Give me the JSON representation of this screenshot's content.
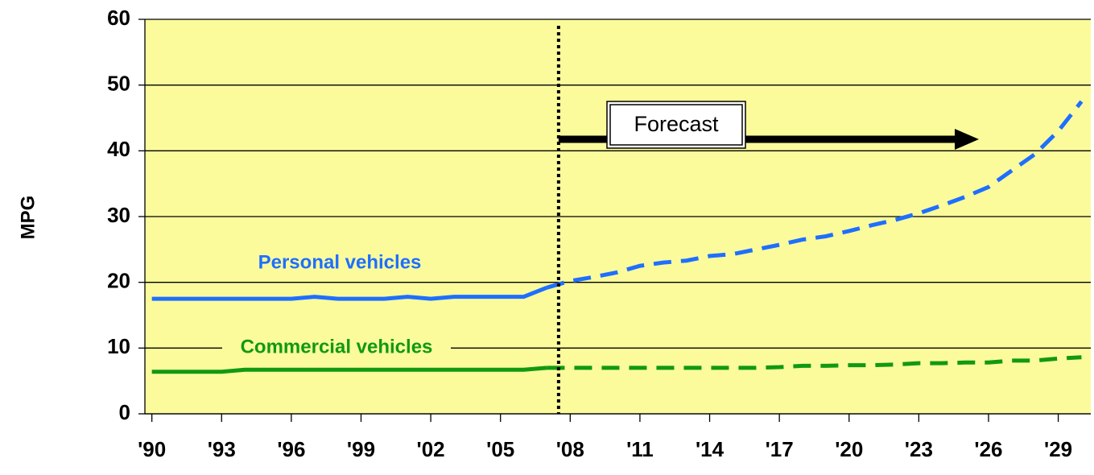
{
  "chart_data": {
    "type": "line",
    "y_axis_label": "MPG",
    "x": [
      1990,
      1991,
      1992,
      1993,
      1994,
      1995,
      1996,
      1997,
      1998,
      1999,
      2000,
      2001,
      2002,
      2003,
      2004,
      2005,
      2006,
      2007,
      2008,
      2009,
      2010,
      2011,
      2012,
      2013,
      2014,
      2015,
      2016,
      2017,
      2018,
      2019,
      2020,
      2021,
      2022,
      2023,
      2024,
      2025,
      2026,
      2027,
      2028,
      2029,
      2030
    ],
    "series": [
      {
        "name": "Personal vehicles",
        "color": "#1f6fff",
        "values": [
          17.5,
          17.5,
          17.5,
          17.5,
          17.5,
          17.5,
          17.5,
          17.8,
          17.5,
          17.5,
          17.5,
          17.8,
          17.5,
          17.8,
          17.8,
          17.8,
          17.8,
          19.2,
          20.2,
          20.8,
          21.5,
          22.5,
          23,
          23.3,
          24,
          24.3,
          25,
          25.7,
          26.5,
          27,
          27.8,
          28.7,
          29.5,
          30.5,
          31.7,
          33,
          34.5,
          37,
          39.5,
          43,
          47.5
        ]
      },
      {
        "name": "Commercial vehicles",
        "color": "#119911",
        "values": [
          6.4,
          6.4,
          6.4,
          6.4,
          6.7,
          6.7,
          6.7,
          6.7,
          6.7,
          6.7,
          6.7,
          6.7,
          6.7,
          6.7,
          6.7,
          6.7,
          6.7,
          7,
          7,
          7,
          7,
          7,
          7,
          7,
          7,
          7,
          7,
          7.1,
          7.3,
          7.3,
          7.4,
          7.4,
          7.5,
          7.7,
          7.7,
          7.8,
          7.8,
          8.1,
          8.1,
          8.4,
          8.6
        ]
      }
    ],
    "annotations": [
      {
        "text": "Forecast",
        "x": 2007.5
      }
    ],
    "xlim": [
      1989.7,
      2030.4
    ],
    "xticks": [
      {
        "value": 1990,
        "label": "'90"
      },
      {
        "value": 1993,
        "label": "'93"
      },
      {
        "value": 1996,
        "label": "'96"
      },
      {
        "value": 1999,
        "label": "'99"
      },
      {
        "value": 2002,
        "label": "'02"
      },
      {
        "value": 2005,
        "label": "'05"
      },
      {
        "value": 2008,
        "label": "'08"
      },
      {
        "value": 2011,
        "label": "'11"
      },
      {
        "value": 2014,
        "label": "'14"
      },
      {
        "value": 2017,
        "label": "'17"
      },
      {
        "value": 2020,
        "label": "'20"
      },
      {
        "value": 2023,
        "label": "'23"
      },
      {
        "value": 2026,
        "label": "'26"
      },
      {
        "value": 2029,
        "label": "'29"
      }
    ],
    "ylim": [
      0,
      60
    ],
    "yticks": [
      0,
      10,
      20,
      30,
      40,
      50,
      60
    ],
    "grid": true,
    "background": "#fbfb9c"
  }
}
